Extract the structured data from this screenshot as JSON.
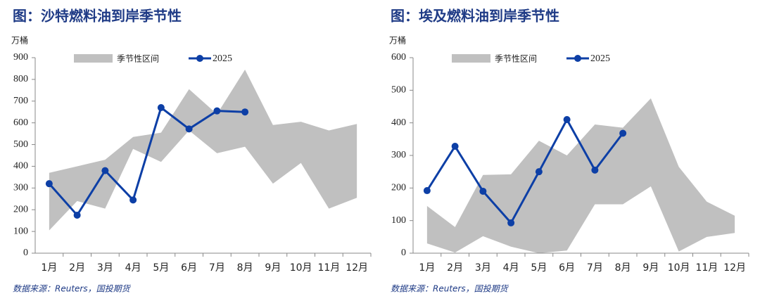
{
  "chart_data": [
    {
      "type": "line",
      "title": "图：沙特燃料油到岸季节性",
      "y_label": "万桶",
      "source": "数据来源：Reuters，国投期货",
      "categories": [
        "1月",
        "2月",
        "3月",
        "4月",
        "5月",
        "6月",
        "7月",
        "8月",
        "9月",
        "10月",
        "11月",
        "12月"
      ],
      "ylim": [
        0,
        900
      ],
      "yticks": [
        0,
        100,
        200,
        300,
        400,
        500,
        600,
        700,
        800,
        900
      ],
      "legend": "top",
      "series": [
        {
          "name": "季节性区间",
          "type": "range",
          "color": "#c0c0c0",
          "upper": [
            370,
            400,
            430,
            535,
            555,
            755,
            640,
            845,
            590,
            605,
            565,
            595
          ],
          "lower": [
            105,
            240,
            205,
            480,
            420,
            565,
            460,
            490,
            320,
            415,
            205,
            255
          ]
        },
        {
          "name": "2025",
          "color": "#0d3fa6",
          "values": [
            320,
            175,
            380,
            245,
            670,
            572,
            655,
            650,
            null,
            null,
            null,
            null
          ]
        }
      ]
    },
    {
      "type": "line",
      "title": "图：埃及燃料油到岸季节性",
      "y_label": "万桶",
      "source": "数据来源：Reuters，国投期货",
      "categories": [
        "1月",
        "2月",
        "3月",
        "4月",
        "5月",
        "6月",
        "7月",
        "8月",
        "9月",
        "10月",
        "11月",
        "12月"
      ],
      "ylim": [
        0,
        600
      ],
      "yticks": [
        0,
        100,
        200,
        300,
        400,
        500,
        600
      ],
      "legend": "top",
      "series": [
        {
          "name": "季节性区间",
          "type": "range",
          "color": "#c0c0c0",
          "upper": [
            145,
            80,
            240,
            242,
            345,
            300,
            395,
            385,
            475,
            265,
            158,
            115
          ],
          "lower": [
            30,
            2,
            52,
            20,
            0,
            8,
            150,
            150,
            205,
            5,
            50,
            62
          ]
        },
        {
          "name": "2025",
          "color": "#0d3fa6",
          "values": [
            192,
            328,
            190,
            93,
            250,
            410,
            255,
            368,
            null,
            null,
            null,
            null
          ]
        }
      ]
    }
  ]
}
